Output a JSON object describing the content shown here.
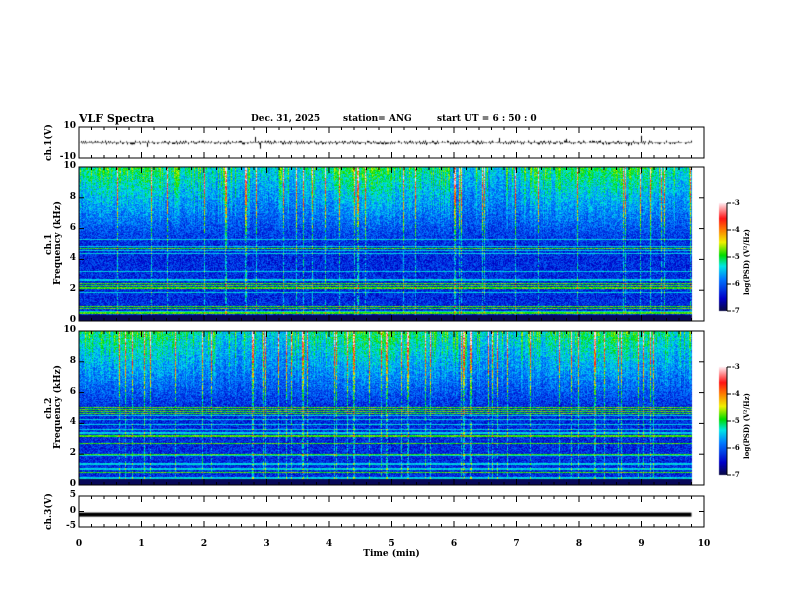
{
  "header": {
    "title": "VLF Spectra",
    "date": "Dec. 31, 2025",
    "station": "station= ANG",
    "start": "start  UT =   6  : 50 : 0"
  },
  "chart_data": [
    {
      "type": "line",
      "name": "ch1",
      "ylabel": "ch.1(V)",
      "ylim": [
        -10,
        10
      ],
      "yticks": [
        "10",
        "-10"
      ],
      "baseline": 0
    },
    {
      "type": "heatmap",
      "name": "ch1-spectrogram",
      "ylabel": "ch.1\nFrequency (kHz)",
      "ylabel_lines": [
        "ch.1",
        "Frequency (kHz)"
      ],
      "ylim": [
        0,
        10
      ],
      "yticks": [
        "0",
        "2",
        "4",
        "6",
        "8",
        "10"
      ],
      "colorbar": {
        "label": "log(PSD) (V²/Hz)",
        "range": [
          -7,
          -3
        ],
        "ticks": [
          "-3",
          "-4",
          "-5",
          "-6",
          "-7"
        ]
      }
    },
    {
      "type": "heatmap",
      "name": "ch2-spectrogram",
      "ylabel_lines": [
        "ch.2",
        "Frequency (kHz)"
      ],
      "ylim": [
        0,
        10
      ],
      "yticks": [
        "0",
        "2",
        "4",
        "6",
        "8",
        "10"
      ],
      "colorbar": {
        "label": "log(PSD) (V²/Hz)",
        "range": [
          -7,
          -3
        ],
        "ticks": [
          "-3",
          "-4",
          "-5",
          "-6",
          "-7"
        ]
      }
    },
    {
      "type": "line",
      "name": "ch3",
      "ylabel": "ch.3(V)",
      "ylim": [
        -5,
        5
      ],
      "yticks": [
        "5",
        "0",
        "-5"
      ],
      "baseline": -1
    }
  ],
  "xaxis": {
    "label": "Time (min)",
    "range": [
      0,
      10
    ],
    "ticks": [
      "0",
      "1",
      "2",
      "3",
      "4",
      "5",
      "6",
      "7",
      "8",
      "9",
      "10"
    ],
    "data_end": 9.8
  }
}
